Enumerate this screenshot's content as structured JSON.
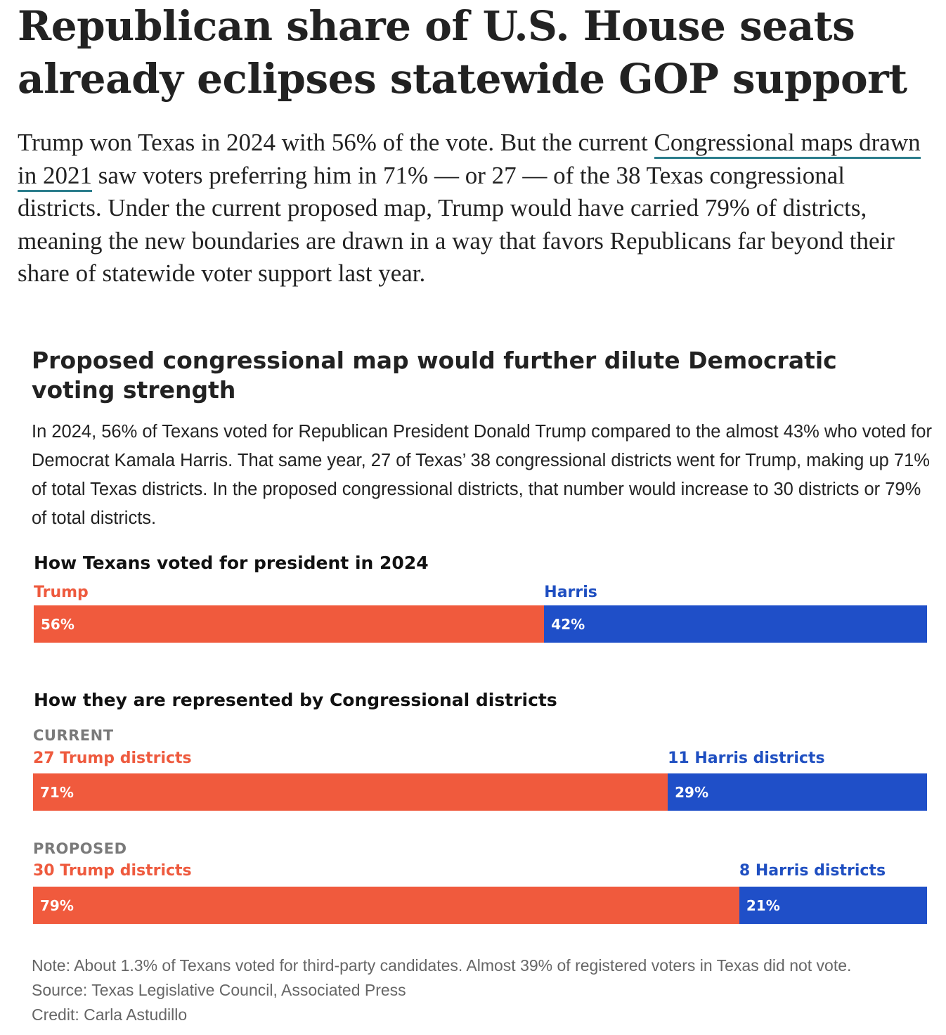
{
  "headline": "Republican share of U.S. House seats already eclipses statewide GOP support",
  "lede": {
    "before": "Trump won Texas in 2024 with 56% of the vote. But the current ",
    "link": "Congressional maps drawn in 2021",
    "after": " saw voters preferring him in 71% — or 27 — of the 38 Texas congressional districts. Under the current proposed map, Trump would have carried 79% of districts, meaning the new boundaries are drawn in a way that favors Republicans far beyond their share of statewide voter support last year."
  },
  "card": {
    "title": "Proposed congressional map would further dilute Democratic voting strength",
    "description": "In 2024, 56% of Texans voted for Republican President Donald Trump compared to the almost 43% who voted for Democrat Kamala Harris. That same year, 27 of Texas’ 38 congressional districts went for Trump, making up 71% of total Texas districts. In the proposed congressional districts, that number would increase to 30 districts or 79% of total districts."
  },
  "colors": {
    "republican": "#f05a3d",
    "democrat": "#1f4fc8"
  },
  "chart_data": [
    {
      "type": "bar",
      "orientation": "horizontal-stacked",
      "title": "How Texans voted for president in 2024",
      "series": [
        {
          "name": "Trump",
          "label": "Trump",
          "value": 56,
          "value_label": "56%"
        },
        {
          "name": "Harris",
          "label": "Harris",
          "value": 42,
          "value_label": "42%"
        }
      ],
      "xlim": [
        0,
        98
      ]
    },
    {
      "type": "bar",
      "orientation": "horizontal-stacked",
      "title": "How they are represented by Congressional districts",
      "groups": [
        {
          "name": "CURRENT",
          "series": [
            {
              "name": "Trump",
              "label": "27 Trump districts",
              "value": 71,
              "value_label": "71%"
            },
            {
              "name": "Harris",
              "label": "11 Harris districts",
              "value": 29,
              "value_label": "29%"
            }
          ]
        },
        {
          "name": "PROPOSED",
          "series": [
            {
              "name": "Trump",
              "label": "30 Trump districts",
              "value": 79,
              "value_label": "79%"
            },
            {
              "name": "Harris",
              "label": "8 Harris districts",
              "value": 21,
              "value_label": "21%"
            }
          ]
        }
      ],
      "xlim": [
        0,
        100
      ]
    }
  ],
  "footer": {
    "note": "Note: About 1.3% of Texans voted for third-party candidates. Almost 39% of registered voters in Texas did not vote.",
    "source": "Source: Texas Legislative Council, Associated Press",
    "credit": "Credit: Carla Astudillo"
  }
}
